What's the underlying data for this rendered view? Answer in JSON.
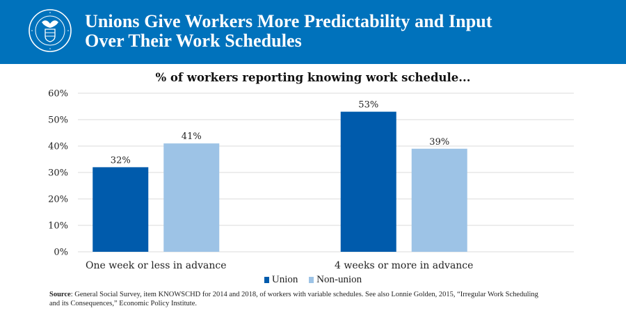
{
  "header": {
    "title_line1": "Unions Give Workers More Predictability and Input",
    "title_line2": "Over Their Work Schedules",
    "logo": "department-of-labor-seal-icon",
    "seal_text": "DEPARTMENT OF LABOR · UNITED STATES OF AMERICA",
    "background_color": "#0072BC"
  },
  "chart_data": {
    "type": "bar",
    "title": "% of workers reporting knowing work schedule...",
    "xlabel": "",
    "ylabel": "",
    "categories": [
      "One week or less in advance",
      "4 weeks or more in advance"
    ],
    "series": [
      {
        "name": "Union",
        "values": [
          32,
          53
        ],
        "labels": [
          "32%",
          "53%"
        ],
        "color": "#005BAC"
      },
      {
        "name": "Non-union",
        "values": [
          41,
          39
        ],
        "labels": [
          "41%",
          "39%"
        ],
        "color": "#9DC3E6"
      }
    ],
    "ylim": [
      0,
      60
    ],
    "yticks": [
      0,
      10,
      20,
      30,
      40,
      50,
      60
    ],
    "ytick_labels": [
      "0%",
      "10%",
      "20%",
      "30%",
      "40%",
      "50%",
      "60%"
    ],
    "grid": true,
    "legend_position": "bottom"
  },
  "legend": {
    "items": [
      {
        "label": "Union",
        "color": "#005BAC"
      },
      {
        "label": "Non-union",
        "color": "#9DC3E6"
      }
    ]
  },
  "source": {
    "label": "Source",
    "text": ": General Social Survey, item KNOWSCHD for 2014 and 2018, of workers with variable schedules. See also Lonnie Golden, 2015, “Irregular Work Scheduling and its Consequences,” Economic Policy Institute."
  }
}
